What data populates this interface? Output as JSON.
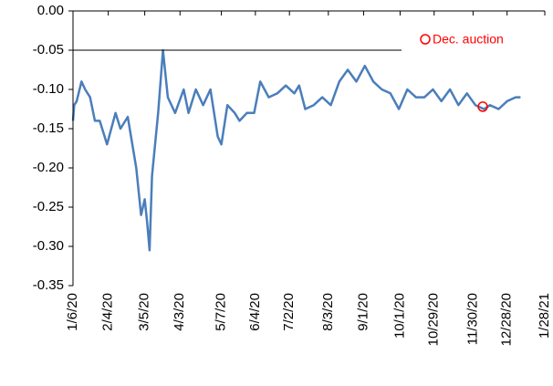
{
  "chart_data": {
    "type": "line",
    "ylim": [
      -0.35,
      0
    ],
    "yticks": [
      {
        "value": 0,
        "label": "0.00"
      },
      {
        "value": -0.05,
        "label": "-0.05"
      },
      {
        "value": -0.1,
        "label": "-0.10"
      },
      {
        "value": -0.15,
        "label": "-0.15"
      },
      {
        "value": -0.2,
        "label": "-0.20"
      },
      {
        "value": -0.25,
        "label": "-0.25"
      },
      {
        "value": -0.3,
        "label": "-0.30"
      },
      {
        "value": -0.35,
        "label": "-0.35"
      }
    ],
    "xlim": [
      "2020-01-06",
      "2021-01-28"
    ],
    "xticks": [
      {
        "value": "2020-01-06",
        "label": "1/6/20"
      },
      {
        "value": "2020-02-04",
        "label": "2/4/20"
      },
      {
        "value": "2020-03-05",
        "label": "3/5/20"
      },
      {
        "value": "2020-04-03",
        "label": "4/3/20"
      },
      {
        "value": "2020-05-07",
        "label": "5/7/20"
      },
      {
        "value": "2020-06-04",
        "label": "6/4/20"
      },
      {
        "value": "2020-07-02",
        "label": "7/2/20"
      },
      {
        "value": "2020-08-03",
        "label": "8/3/20"
      },
      {
        "value": "2020-09-01",
        "label": "9/1/20"
      },
      {
        "value": "2020-10-01",
        "label": "10/1/20"
      },
      {
        "value": "2020-10-29",
        "label": "10/29/20"
      },
      {
        "value": "2020-11-30",
        "label": "11/30/20"
      },
      {
        "value": "2020-12-28",
        "label": "12/28/20"
      },
      {
        "value": "2021-01-28",
        "label": "1/28/21"
      }
    ],
    "series": [
      {
        "name": "",
        "color": "#4a7ebb",
        "x": [
          "2020-01-06",
          "2020-01-07",
          "2020-01-09",
          "2020-01-13",
          "2020-01-16",
          "2020-01-20",
          "2020-01-24",
          "2020-01-28",
          "2020-02-03",
          "2020-02-10",
          "2020-02-14",
          "2020-02-20",
          "2020-02-27",
          "2020-03-02",
          "2020-03-05",
          "2020-03-07",
          "2020-03-09",
          "2020-03-11",
          "2020-03-16",
          "2020-03-20",
          "2020-03-24",
          "2020-03-30",
          "2020-04-06",
          "2020-04-10",
          "2020-04-16",
          "2020-04-22",
          "2020-04-28",
          "2020-05-04",
          "2020-05-07",
          "2020-05-12",
          "2020-05-18",
          "2020-05-22",
          "2020-05-28",
          "2020-06-03",
          "2020-06-08",
          "2020-06-15",
          "2020-06-22",
          "2020-06-29",
          "2020-07-06",
          "2020-07-10",
          "2020-07-15",
          "2020-07-22",
          "2020-07-29",
          "2020-08-05",
          "2020-08-12",
          "2020-08-19",
          "2020-08-26",
          "2020-09-02",
          "2020-09-09",
          "2020-09-16",
          "2020-09-23",
          "2020-09-30",
          "2020-10-07",
          "2020-10-14",
          "2020-10-21",
          "2020-10-28",
          "2020-11-04",
          "2020-11-11",
          "2020-11-18",
          "2020-11-25",
          "2020-12-02",
          "2020-12-09",
          "2020-12-14",
          "2020-12-21",
          "2020-12-28",
          "2021-01-04",
          "2021-01-08"
        ],
        "values": [
          -0.14,
          -0.12,
          -0.115,
          -0.09,
          -0.1,
          -0.11,
          -0.14,
          -0.14,
          -0.17,
          -0.13,
          -0.15,
          -0.135,
          -0.2,
          -0.26,
          -0.24,
          -0.27,
          -0.305,
          -0.21,
          -0.13,
          -0.05,
          -0.11,
          -0.13,
          -0.1,
          -0.13,
          -0.1,
          -0.12,
          -0.1,
          -0.16,
          -0.17,
          -0.12,
          -0.13,
          -0.14,
          -0.13,
          -0.13,
          -0.09,
          -0.11,
          -0.105,
          -0.095,
          -0.105,
          -0.095,
          -0.125,
          -0.12,
          -0.11,
          -0.12,
          -0.09,
          -0.075,
          -0.09,
          -0.07,
          -0.09,
          -0.1,
          -0.105,
          -0.125,
          -0.1,
          -0.11,
          -0.11,
          -0.1,
          -0.115,
          -0.1,
          -0.12,
          -0.105,
          -0.12,
          -0.125,
          -0.12,
          -0.125,
          -0.115,
          -0.11,
          -0.11
        ]
      },
      {
        "name": "Dec. auction",
        "color": "#ff0000",
        "marker": "circle",
        "x": [
          "2020-12-08"
        ],
        "values": [
          -0.122
        ]
      }
    ]
  }
}
